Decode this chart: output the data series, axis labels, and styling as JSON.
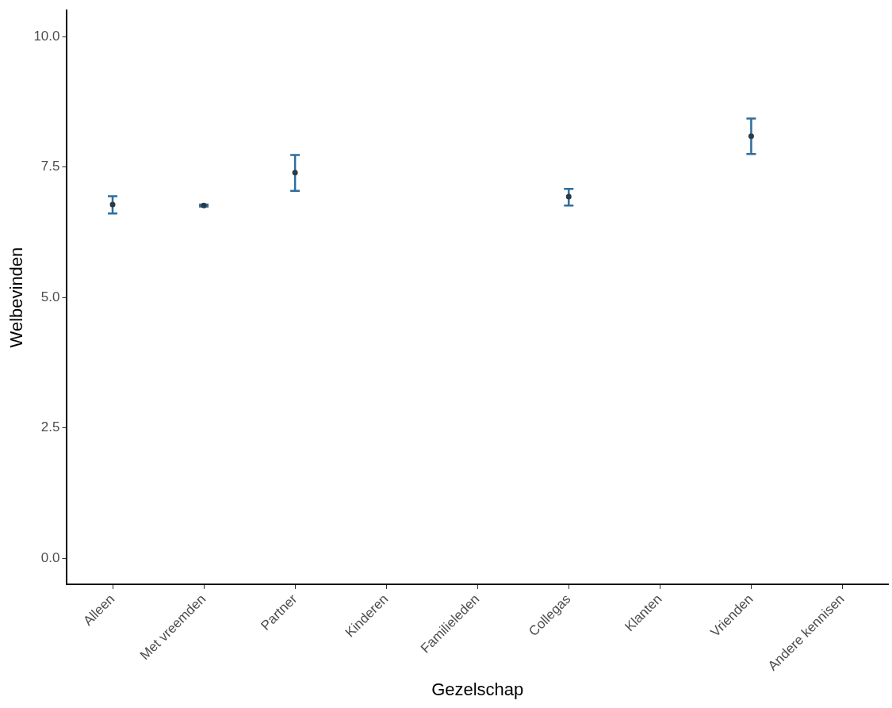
{
  "chart_data": {
    "type": "scatter",
    "xlabel": "Gezelschap",
    "ylabel": "Welbevinden",
    "categories": [
      "Alleen",
      "Met vreemden",
      "Partner",
      "Kinderen",
      "Familieleden",
      "Collegas",
      "Klanten",
      "Vrienden",
      "Andere kennisen"
    ],
    "series": [
      {
        "color": "#2b3a47",
        "values": [
          6.78,
          6.76,
          7.39,
          null,
          null,
          6.93,
          null,
          8.09,
          null
        ],
        "errors": [
          [
            6.61,
            6.94
          ],
          [
            6.74,
            6.78
          ],
          [
            7.04,
            7.73
          ],
          null,
          null,
          [
            6.76,
            7.08
          ],
          null,
          [
            7.75,
            8.43
          ],
          null
        ]
      }
    ],
    "ylim": [
      -0.5,
      10.5
    ],
    "yticks": [
      {
        "value": 0,
        "label": "0.0"
      },
      {
        "value": 2.5,
        "label": "2.5"
      },
      {
        "value": 5,
        "label": "5.0"
      },
      {
        "value": 7.5,
        "label": "7.5"
      },
      {
        "value": 10,
        "label": "10.0"
      }
    ],
    "grid": false,
    "legend": false,
    "marker": "circle"
  }
}
